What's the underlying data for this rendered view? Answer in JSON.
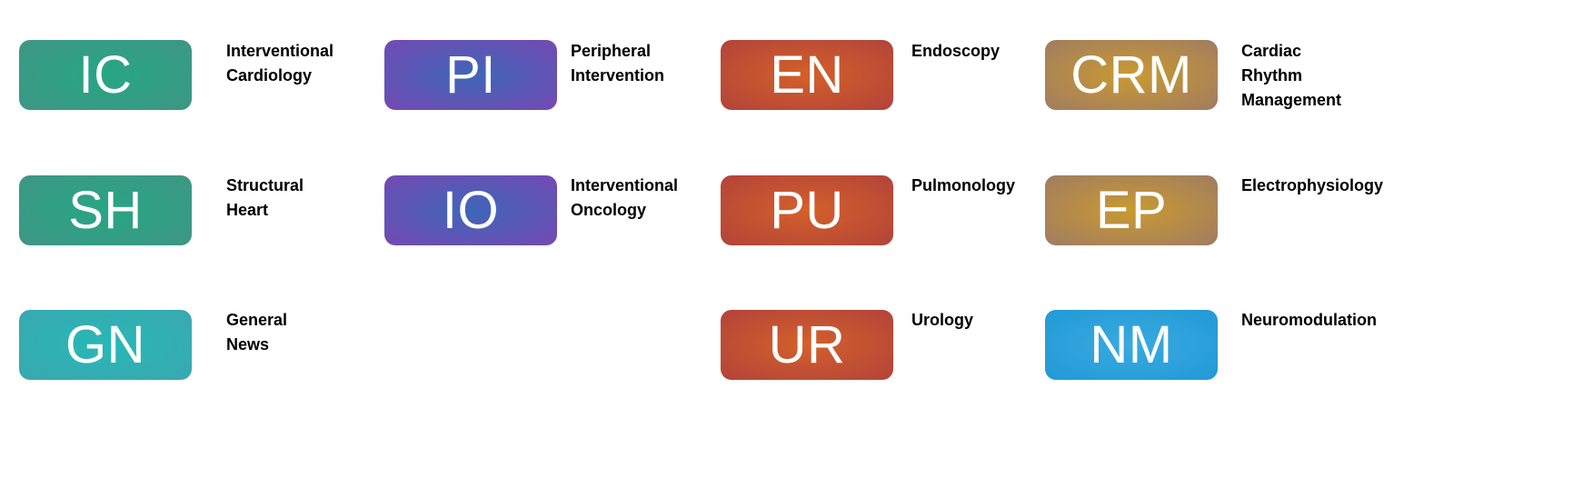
{
  "categories": [
    {
      "abbr": "IC",
      "label": "Interventional\nCardiology",
      "color": "#3a9d85"
    },
    {
      "abbr": "PI",
      "label": "Peripheral\nIntervention",
      "color": "#6a50b4"
    },
    {
      "abbr": "EN",
      "label": "Endoscopy",
      "color": "#c2513a"
    },
    {
      "abbr": "CRM",
      "label": "Cardiac Rhythm\nManagement",
      "color": "#a88458"
    },
    {
      "abbr": "SH",
      "label": "Structural Heart",
      "color": "#3a9d85"
    },
    {
      "abbr": "IO",
      "label": "Interventional\nOncology",
      "color": "#6a50b4"
    },
    {
      "abbr": "PU",
      "label": "Pulmonology",
      "color": "#c2513a"
    },
    {
      "abbr": "EP",
      "label": "Electrophysiology",
      "color": "#a88458"
    },
    {
      "abbr": "GN",
      "label": "General News",
      "color": "#33aeb3"
    },
    {
      "abbr": "UR",
      "label": "Urology",
      "color": "#c2513a"
    },
    {
      "abbr": "NM",
      "label": "Neuromodulation",
      "color": "#2ba1da"
    }
  ]
}
